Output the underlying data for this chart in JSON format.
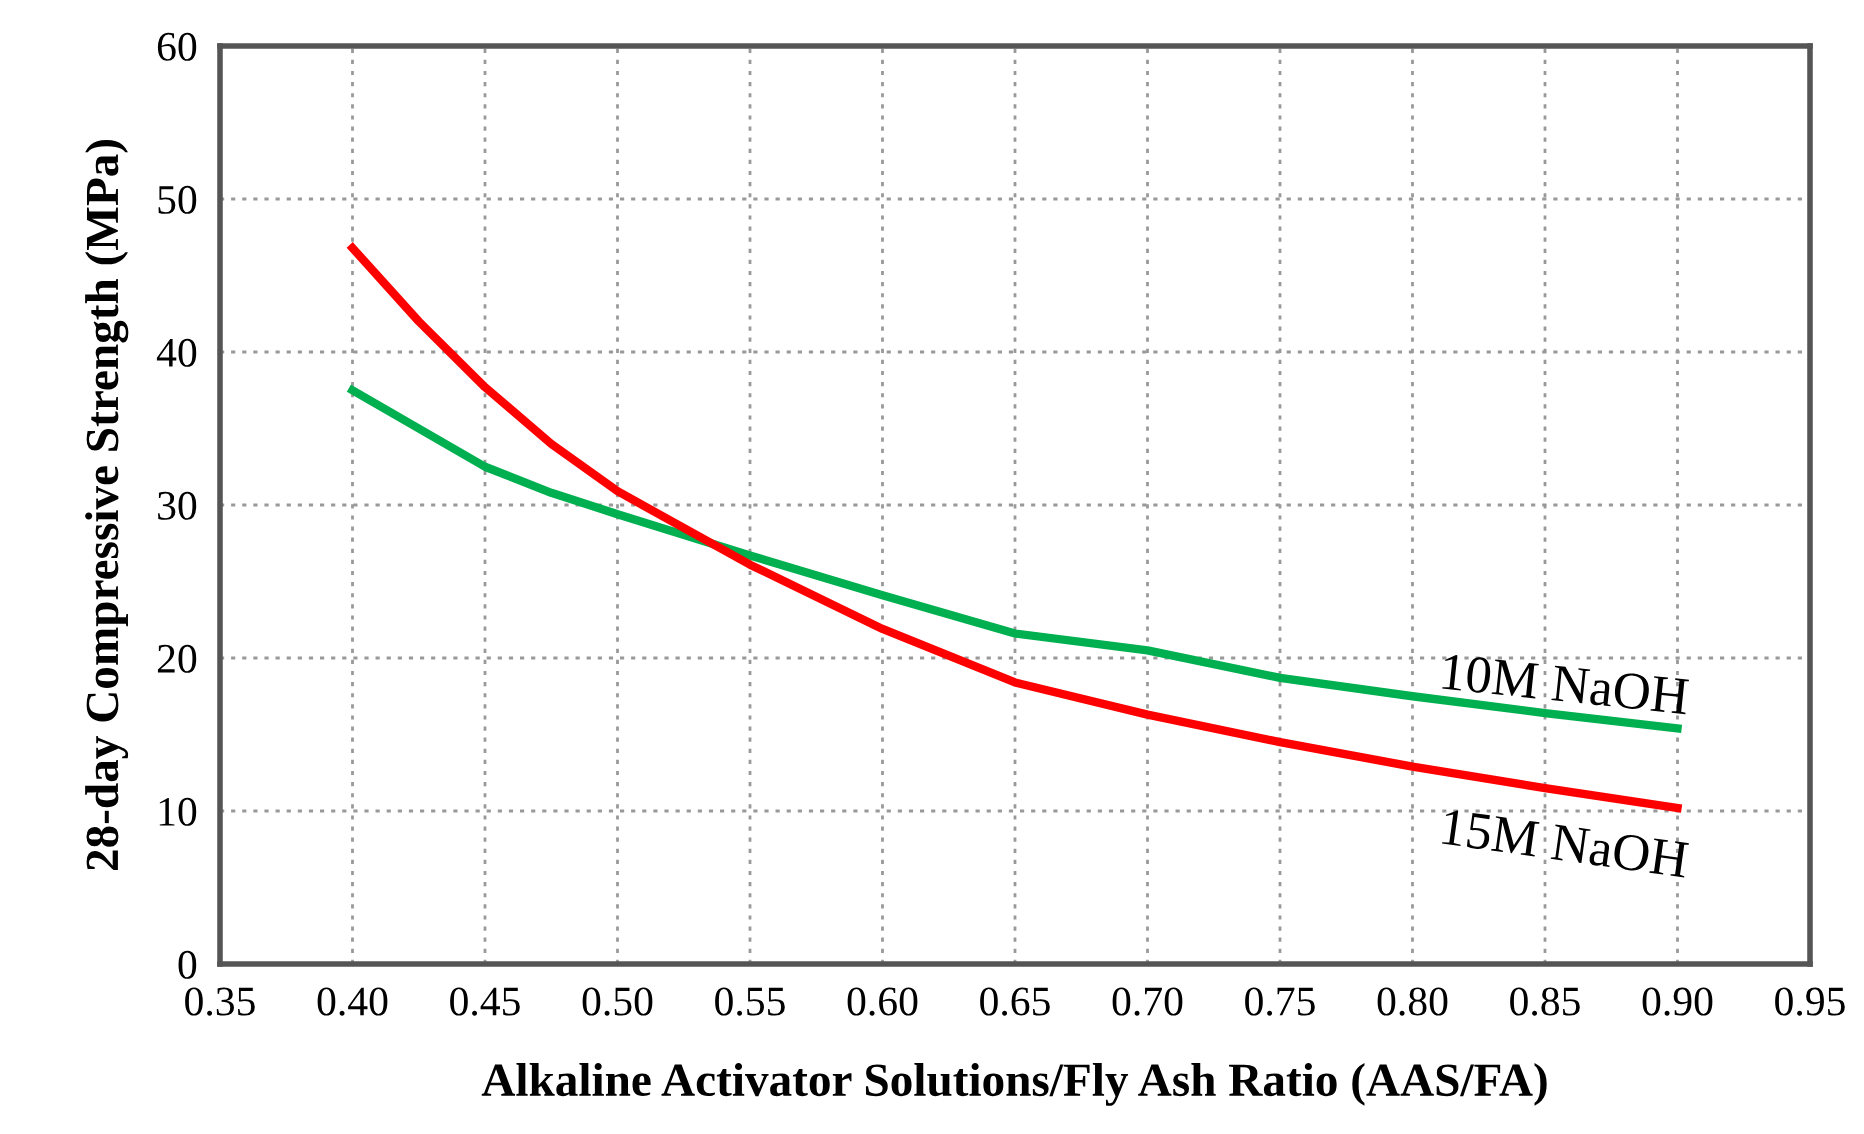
{
  "chart_data": {
    "type": "line",
    "xlabel": "Alkaline Activator Solutions/Fly Ash Ratio (AAS/FA)",
    "ylabel": "28-day Compressive Strength (MPa)",
    "x": [
      0.4,
      0.425,
      0.45,
      0.475,
      0.5,
      0.55,
      0.6,
      0.65,
      0.7,
      0.75,
      0.8,
      0.85,
      0.9
    ],
    "series": [
      {
        "name": "10M NaOH",
        "color": "#00b050",
        "values": [
          37.5,
          35.0,
          32.5,
          30.8,
          29.4,
          26.7,
          24.1,
          21.6,
          20.5,
          18.7,
          17.5,
          16.4,
          15.4
        ]
      },
      {
        "name": "15M NaOH",
        "color": "#ff0000",
        "values": [
          46.8,
          42.0,
          37.7,
          34.0,
          30.9,
          26.1,
          21.9,
          18.4,
          16.3,
          14.5,
          12.9,
          11.5,
          10.2
        ]
      }
    ],
    "xlim": [
      0.35,
      0.95
    ],
    "xticks": [
      {
        "value": 0.35,
        "label": "0.35"
      },
      {
        "value": 0.4,
        "label": "0.40"
      },
      {
        "value": 0.45,
        "label": "0.45"
      },
      {
        "value": 0.5,
        "label": "0.50"
      },
      {
        "value": 0.55,
        "label": "0.55"
      },
      {
        "value": 0.6,
        "label": "0.60"
      },
      {
        "value": 0.65,
        "label": "0.65"
      },
      {
        "value": 0.7,
        "label": "0.70"
      },
      {
        "value": 0.75,
        "label": "0.75"
      },
      {
        "value": 0.8,
        "label": "0.80"
      },
      {
        "value": 0.85,
        "label": "0.85"
      },
      {
        "value": 0.9,
        "label": "0.90"
      },
      {
        "value": 0.95,
        "label": "0.95"
      }
    ],
    "ylim": [
      0,
      60
    ],
    "yticks": [
      0,
      10,
      20,
      30,
      40,
      50,
      60
    ],
    "grid": true,
    "line_style": "solid",
    "marker": "none",
    "legend": false
  }
}
